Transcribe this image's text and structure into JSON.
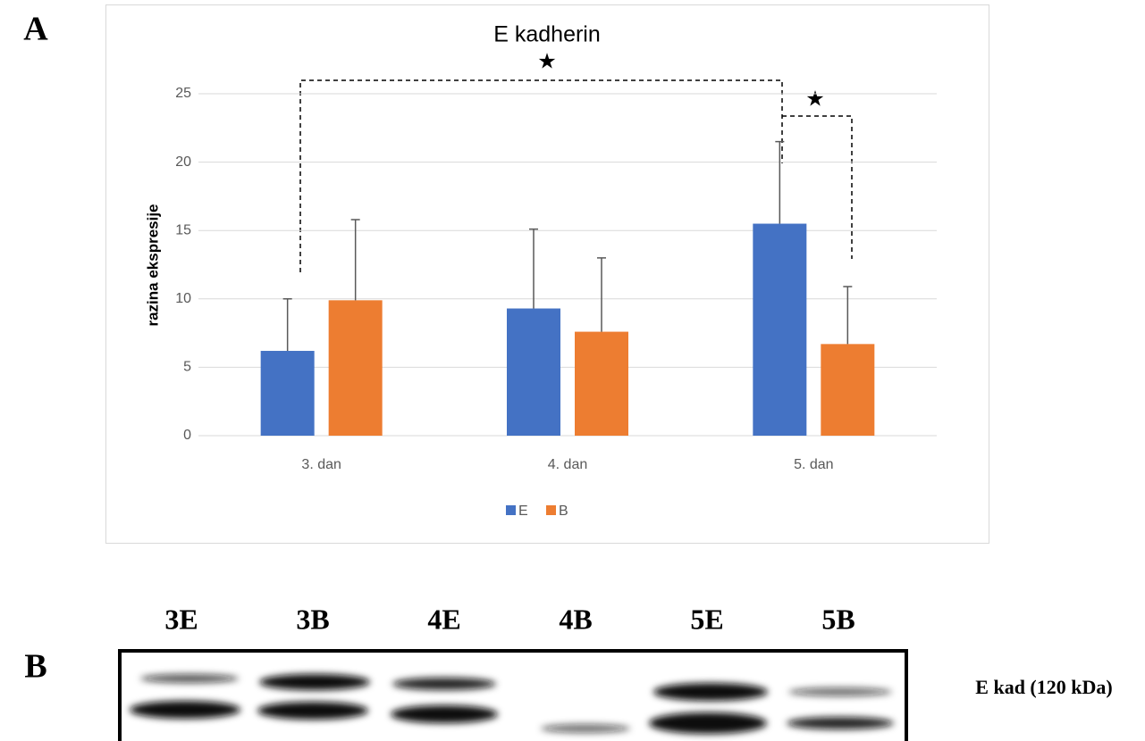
{
  "panel_labels": [
    "A",
    "B"
  ],
  "chart_data": {
    "type": "bar",
    "title": "E kadherin",
    "y_label": "razina ekspresije",
    "categories": [
      "3. dan",
      "4. dan",
      "5. dan"
    ],
    "series": [
      {
        "name": "E",
        "color": "#4472c4",
        "values": [
          6.2,
          9.3,
          15.5
        ],
        "errors": [
          3.8,
          5.8,
          6.0
        ]
      },
      {
        "name": "B",
        "color": "#ed7d31",
        "values": [
          9.9,
          7.6,
          6.7
        ],
        "errors": [
          5.9,
          5.4,
          4.2
        ]
      }
    ],
    "ylim": [
      0,
      25
    ],
    "yticks": [
      0,
      5,
      10,
      15,
      20,
      25
    ],
    "grid": true,
    "legend": "bottom",
    "annotations": [
      "★",
      "★"
    ]
  },
  "blot": {
    "lanes": [
      "3E",
      "3B",
      "4E",
      "4B",
      "5E",
      "5B"
    ],
    "label": "E kad (120 kDa)"
  }
}
